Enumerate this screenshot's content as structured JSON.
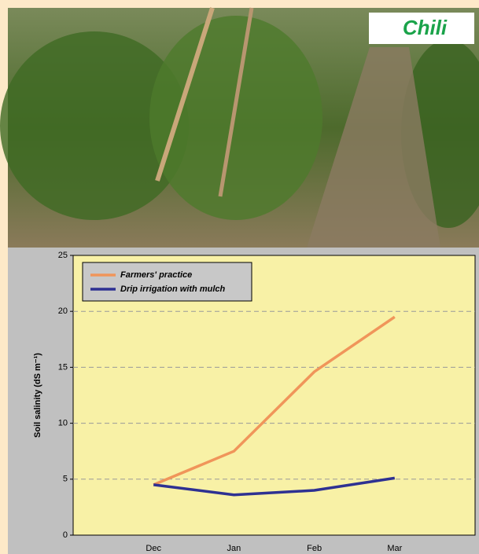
{
  "photo_label": "Chili",
  "chart_data": {
    "type": "line",
    "y_label": "Soil salinity (dS m⁻¹)",
    "categories": [
      "Dec",
      "Jan",
      "Feb",
      "Mar"
    ],
    "series": [
      {
        "name": "Farmers' practice",
        "color": "#f0955a",
        "values": [
          4.5,
          7.5,
          14.6,
          19.5
        ]
      },
      {
        "name": "Drip irrigation with mulch",
        "color": "#2e3192",
        "values": [
          4.5,
          3.6,
          4.0,
          5.1
        ]
      }
    ],
    "ylim": [
      0,
      25
    ],
    "yticks": [
      0,
      5,
      10,
      15,
      20,
      25
    ],
    "grid": true,
    "legend": "upper left"
  }
}
